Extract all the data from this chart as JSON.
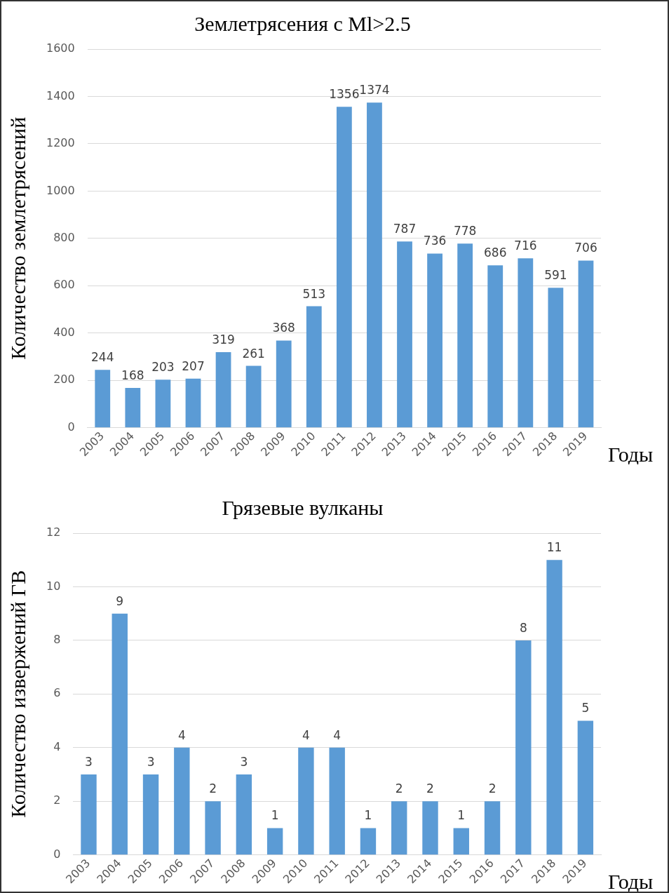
{
  "chart_data": [
    {
      "type": "bar",
      "title": "Землетрясения с Ml>2.5",
      "xlabel": "Годы",
      "ylabel": "Количество землетрясений",
      "categories": [
        "2003",
        "2004",
        "2005",
        "2006",
        "2007",
        "2008",
        "2009",
        "2010",
        "2011",
        "2012",
        "2013",
        "2014",
        "2015",
        "2016",
        "2017",
        "2018",
        "2019"
      ],
      "values": [
        244,
        168,
        203,
        207,
        319,
        261,
        368,
        513,
        1356,
        1374,
        787,
        736,
        778,
        686,
        716,
        591,
        706
      ],
      "color": "#5b9bd5",
      "ylim": [
        0,
        1600
      ],
      "yticks": [
        0,
        200,
        400,
        600,
        800,
        1000,
        1200,
        1400,
        1600
      ],
      "grid": "y",
      "legend": false,
      "data_labels": true
    },
    {
      "type": "bar",
      "title": "Грязевые вулканы",
      "xlabel": "Годы",
      "ylabel": "Количество извержений ГВ",
      "categories": [
        "2003",
        "2004",
        "2005",
        "2006",
        "2007",
        "2008",
        "2009",
        "2010",
        "2011",
        "2012",
        "2013",
        "2014",
        "2015",
        "2016",
        "2017",
        "2018",
        "2019"
      ],
      "values": [
        3,
        9,
        3,
        4,
        2,
        3,
        1,
        4,
        4,
        1,
        2,
        2,
        1,
        2,
        8,
        11,
        5
      ],
      "color": "#5b9bd5",
      "ylim": [
        0,
        12
      ],
      "yticks": [
        0,
        2,
        4,
        6,
        8,
        10,
        12
      ],
      "grid": "y",
      "legend": false,
      "data_labels": true
    }
  ]
}
